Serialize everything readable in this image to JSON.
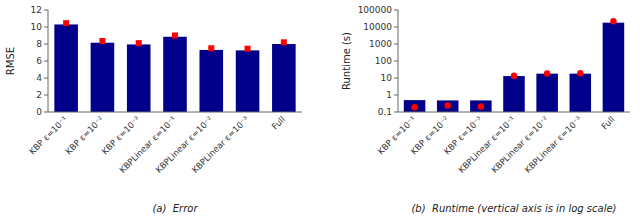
{
  "chart_data": [
    {
      "type": "bar",
      "categories": [
        "KBP ε=10⁻¹",
        "KBP ε=10⁻²",
        "KBP ε=10⁻³",
        "KBPLinear ε=10⁻¹",
        "KBPLinear ε=10⁻²",
        "KBPLinear ε=10⁻³",
        "Full"
      ],
      "series": [
        {
          "type": "bar",
          "color": "#00008B",
          "values": [
            10.3,
            8.15,
            7.95,
            8.85,
            7.3,
            7.25,
            8.0
          ]
        },
        {
          "type": "scatter",
          "color": "#FF0000",
          "marker": "square",
          "values": [
            10.45,
            8.35,
            8.1,
            9.0,
            7.5,
            7.45,
            8.2
          ]
        }
      ],
      "ylabel": "RMSE",
      "xlabel": "(a)  Error",
      "ylim": [
        0,
        12
      ],
      "yticks": [
        0,
        2,
        4,
        6,
        8,
        10,
        12
      ],
      "grid": false
    },
    {
      "type": "bar",
      "categories": [
        "KBP ε=10⁻¹",
        "KBP ε=10⁻²",
        "KBP ε=10⁻³",
        "KBPLinear ε=10⁻¹",
        "KBPLinear ε=10⁻²",
        "KBPLinear ε=10⁻³",
        "Full"
      ],
      "series": [
        {
          "type": "bar",
          "color": "#00008B",
          "values": [
            0.5,
            0.48,
            0.48,
            13.0,
            18.0,
            18.0,
            18000
          ]
        },
        {
          "type": "scatter",
          "color": "#FF0000",
          "marker": "circle",
          "values": [
            0.19,
            0.24,
            0.21,
            13.5,
            18.5,
            19.0,
            22000
          ]
        }
      ],
      "ylabel": "Runtime (s)",
      "xlabel": "(b)  Runtime (vertical axis is in log scale)",
      "log": "y",
      "ylim": [
        0.1,
        100000
      ],
      "yticks": [
        0.1,
        1,
        10,
        100,
        1000,
        10000,
        100000
      ],
      "grid": false
    }
  ]
}
